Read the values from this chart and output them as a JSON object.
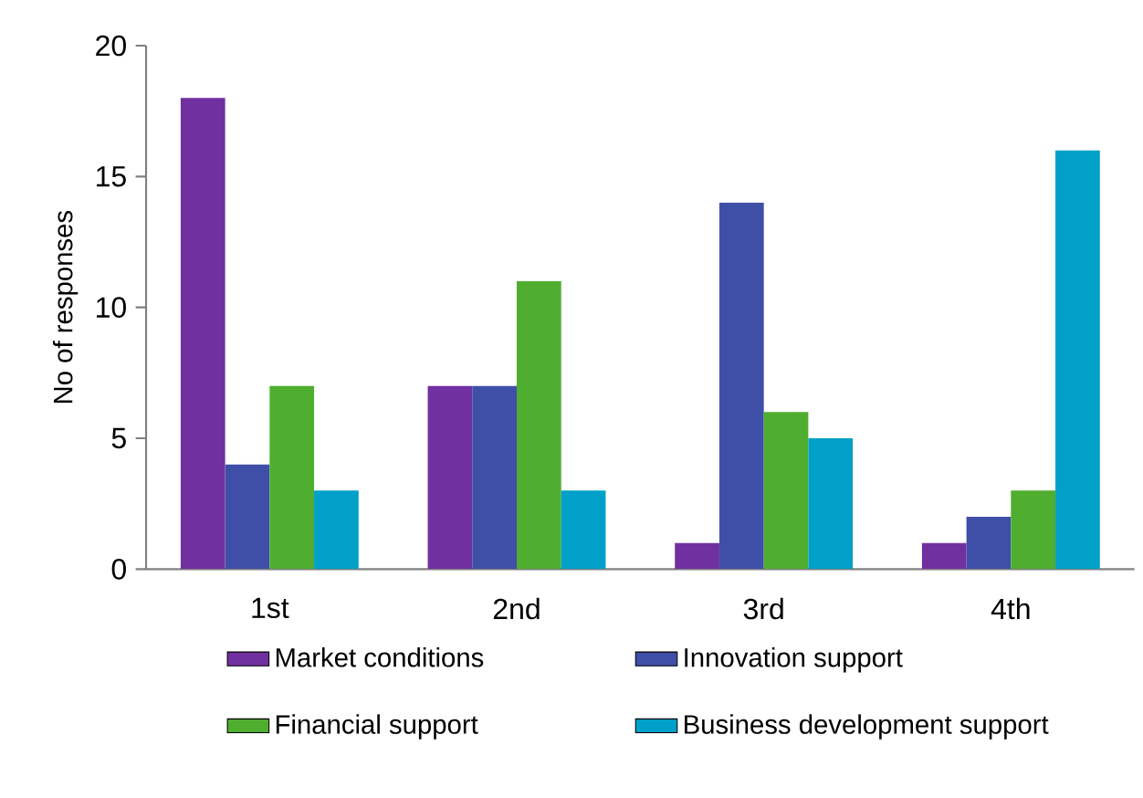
{
  "chart_data": {
    "type": "bar",
    "ylabel": "No of responses",
    "categories": [
      "1st",
      "2nd",
      "3rd",
      "4th"
    ],
    "series": [
      {
        "name": "Market conditions",
        "color": "#7030a0",
        "values": [
          18,
          7,
          1,
          1
        ]
      },
      {
        "name": "Innovation support",
        "color": "#3f4fa8",
        "values": [
          4,
          7,
          14,
          2
        ]
      },
      {
        "name": "Financial support",
        "color": "#4fae2f",
        "values": [
          7,
          11,
          6,
          3
        ]
      },
      {
        "name": "Business development support",
        "color": "#00a0c8",
        "values": [
          3,
          3,
          5,
          16
        ]
      }
    ],
    "ylim": [
      0,
      20
    ],
    "yticks": [
      0,
      5,
      10,
      15,
      20
    ],
    "grid": false,
    "legend": "bottom"
  }
}
